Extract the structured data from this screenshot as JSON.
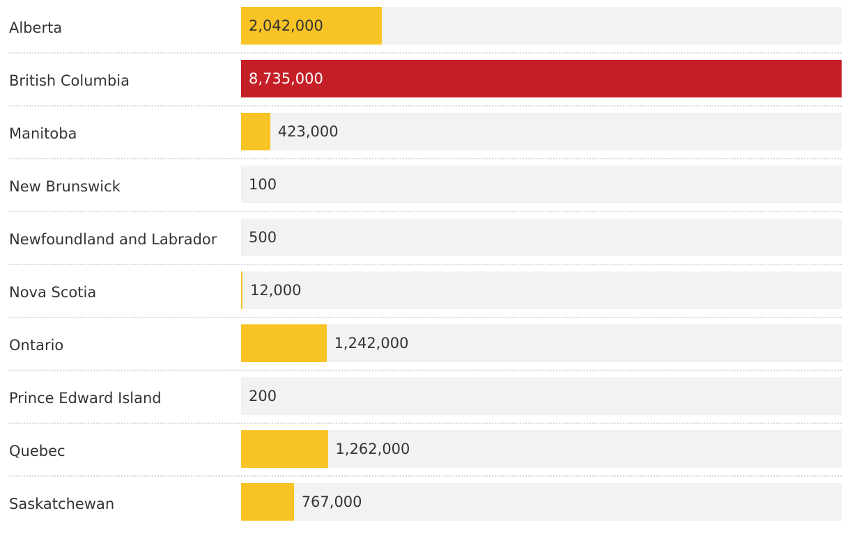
{
  "chart_data": {
    "type": "bar",
    "orientation": "horizontal",
    "title": "",
    "xlabel": "",
    "ylabel": "",
    "categories": [
      "Alberta",
      "British Columbia",
      "Manitoba",
      "New Brunswick",
      "Newfoundland and Labrador",
      "Nova Scotia",
      "Ontario",
      "Prince Edward Island",
      "Quebec",
      "Saskatchewan"
    ],
    "values": [
      2042000,
      8735000,
      423000,
      100,
      500,
      12000,
      1242000,
      200,
      1262000,
      767000
    ],
    "labels": [
      "2,042,000",
      "8,735,000",
      "423,000",
      "100",
      "500",
      "12,000",
      "1,242,000",
      "200",
      "1,262,000",
      "767,000"
    ],
    "highlight": "British Columbia",
    "xlim": [
      0,
      8735000
    ],
    "colors": {
      "default": "#F7C325",
      "highlight": "#C41F26",
      "track": "#F2F2F2"
    }
  }
}
